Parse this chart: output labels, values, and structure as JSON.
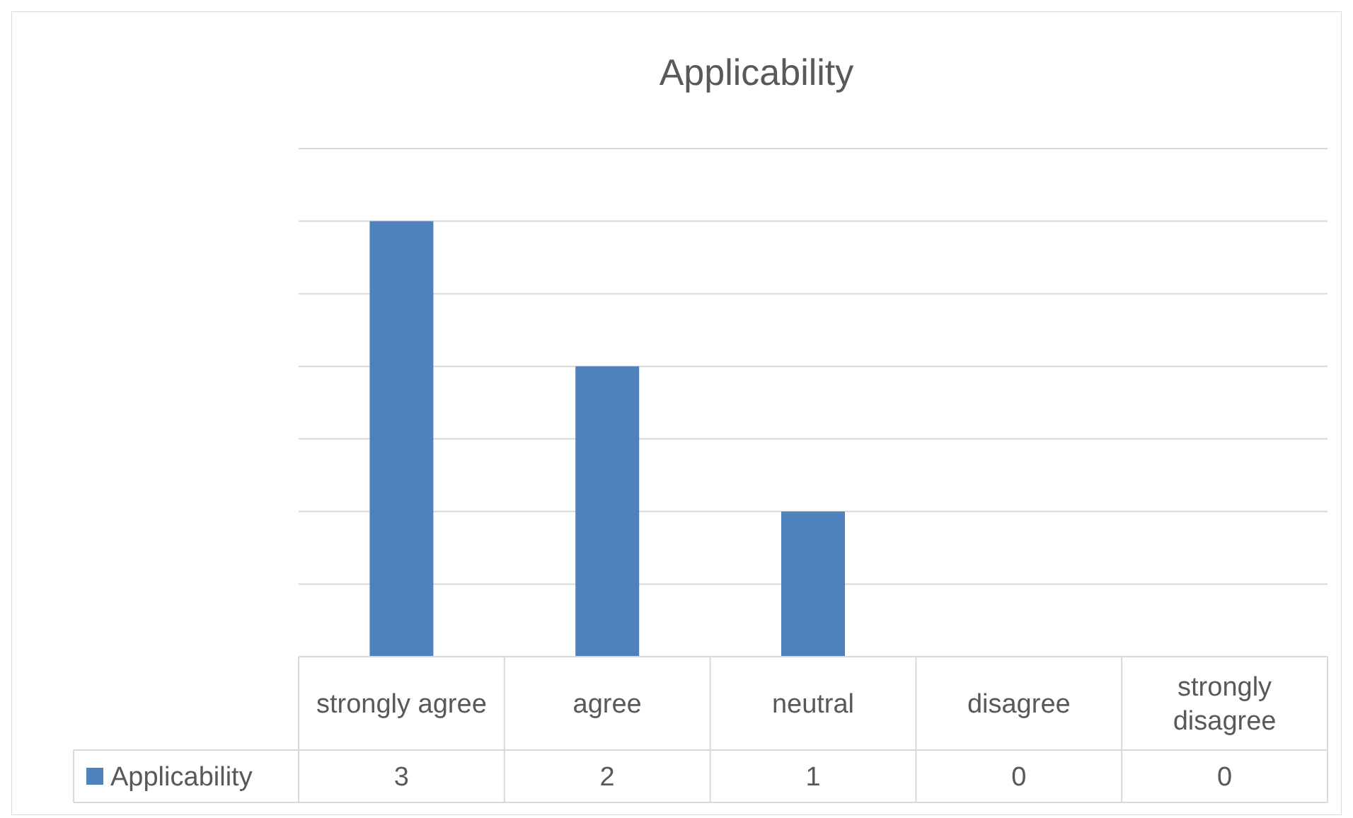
{
  "chart_data": {
    "type": "bar",
    "title": "Applicability",
    "categories": [
      "strongly agree",
      "agree",
      "neutral",
      "disagree",
      "strongly disagree"
    ],
    "series": [
      {
        "name": "Applicability",
        "color": "#4f81bd",
        "values": [
          3,
          2,
          1,
          0,
          0
        ]
      }
    ],
    "ylim": [
      0,
      3.5
    ],
    "yticks": [
      {
        "value": 0,
        "label": null
      },
      {
        "value": 0.5,
        "label": null
      },
      {
        "value": 1,
        "label": null
      },
      {
        "value": 1.5,
        "label": null
      },
      {
        "value": 2,
        "label": null
      },
      {
        "value": 2.5,
        "label": null
      },
      {
        "value": 3,
        "label": null
      },
      {
        "value": 3.5,
        "label": null
      }
    ],
    "grid": "y",
    "tick_labels": "x",
    "data_labels": true,
    "legend": "bottom"
  }
}
